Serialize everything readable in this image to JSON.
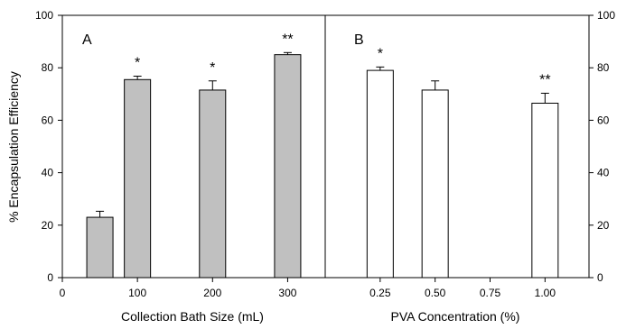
{
  "chart_data": [
    {
      "type": "bar",
      "panel_label": "A",
      "xlabel": "Collection Bath Size (mL)",
      "ylabel": "% Encapsulation Efficiency",
      "ylim": [
        0,
        100
      ],
      "xlim": [
        0,
        350
      ],
      "xticks": [
        0,
        100,
        200,
        300
      ],
      "yticks": [
        0,
        20,
        40,
        60,
        80,
        100
      ],
      "bar_color": "#c0c0c0",
      "bars": [
        {
          "x": 50,
          "value": 23,
          "error": 2.3,
          "annotation": ""
        },
        {
          "x": 100,
          "value": 75.5,
          "error": 1.3,
          "annotation": "*"
        },
        {
          "x": 200,
          "value": 71.5,
          "error": 3.5,
          "annotation": "*"
        },
        {
          "x": 300,
          "value": 85,
          "error": 0.8,
          "annotation": "**"
        }
      ]
    },
    {
      "type": "bar",
      "panel_label": "B",
      "xlabel": "PVA Concentration (%)",
      "ylim": [
        0,
        100
      ],
      "xlim": [
        0,
        1.2
      ],
      "xtick_values": [
        0.25,
        0.5,
        0.75,
        1.0
      ],
      "xtick_labels": [
        "0.25",
        "0.50",
        "0.75",
        "1.00"
      ],
      "yticks": [
        0,
        20,
        40,
        60,
        80,
        100
      ],
      "bar_color": "#ffffff",
      "bars": [
        {
          "x": 0.25,
          "value": 79,
          "error": 1.3,
          "annotation": "*"
        },
        {
          "x": 0.5,
          "value": 71.5,
          "error": 3.5,
          "annotation": ""
        },
        {
          "x": 1.0,
          "value": 66.5,
          "error": 3.8,
          "annotation": "**"
        }
      ]
    }
  ]
}
